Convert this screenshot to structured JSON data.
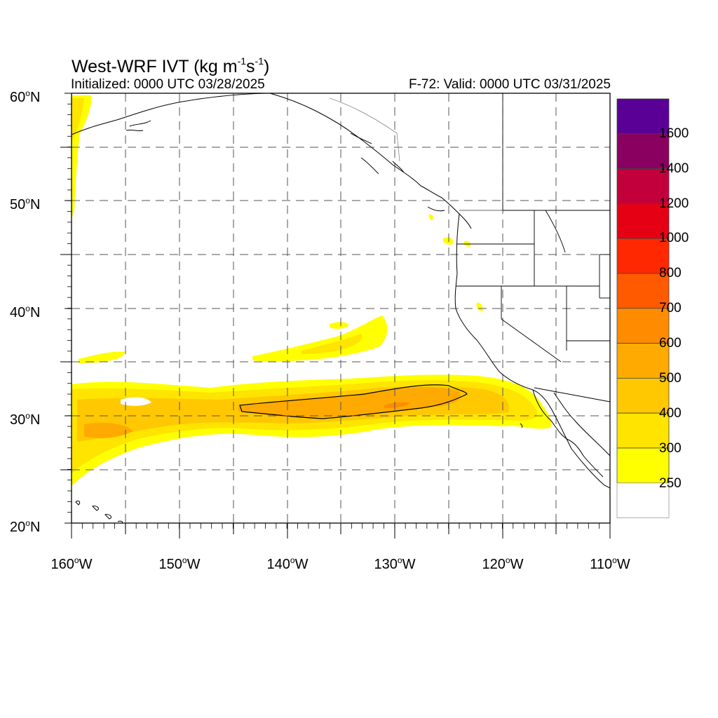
{
  "title": {
    "main": "West-WRF IVT (kg m",
    "sup1": "-1",
    "mid": "s",
    "sup2": "-1",
    "close": ")"
  },
  "subtitle_left": "Initialized: 0000 UTC 03/28/2025",
  "subtitle_right": "F-72: Valid: 0000 UTC 03/31/2025",
  "lat_ticks": [
    {
      "deg": "60",
      "hemi": "N"
    },
    {
      "deg": "50",
      "hemi": "N"
    },
    {
      "deg": "40",
      "hemi": "N"
    },
    {
      "deg": "30",
      "hemi": "N"
    },
    {
      "deg": "20",
      "hemi": "N"
    }
  ],
  "lon_ticks": [
    {
      "deg": "160",
      "hemi": "W"
    },
    {
      "deg": "150",
      "hemi": "W"
    },
    {
      "deg": "140",
      "hemi": "W"
    },
    {
      "deg": "130",
      "hemi": "W"
    },
    {
      "deg": "120",
      "hemi": "W"
    },
    {
      "deg": "110",
      "hemi": "W"
    }
  ],
  "colorbar": {
    "labels": [
      "1600",
      "1400",
      "1200",
      "1000",
      "800",
      "700",
      "600",
      "500",
      "400",
      "300",
      "250"
    ],
    "colors": [
      "#5a0096",
      "#8a0060",
      "#c2003c",
      "#e60014",
      "#ff2800",
      "#ff5a00",
      "#ff8c00",
      "#ffaa00",
      "#ffc800",
      "#ffe400",
      "#ffff00",
      "#ffffff"
    ]
  },
  "colors": {
    "ivt_250": "#ffff00",
    "ivt_300": "#ffe400",
    "ivt_400": "#ffc800",
    "ivt_500": "#ffaa00",
    "ivt_600": "#ff8c00"
  }
}
